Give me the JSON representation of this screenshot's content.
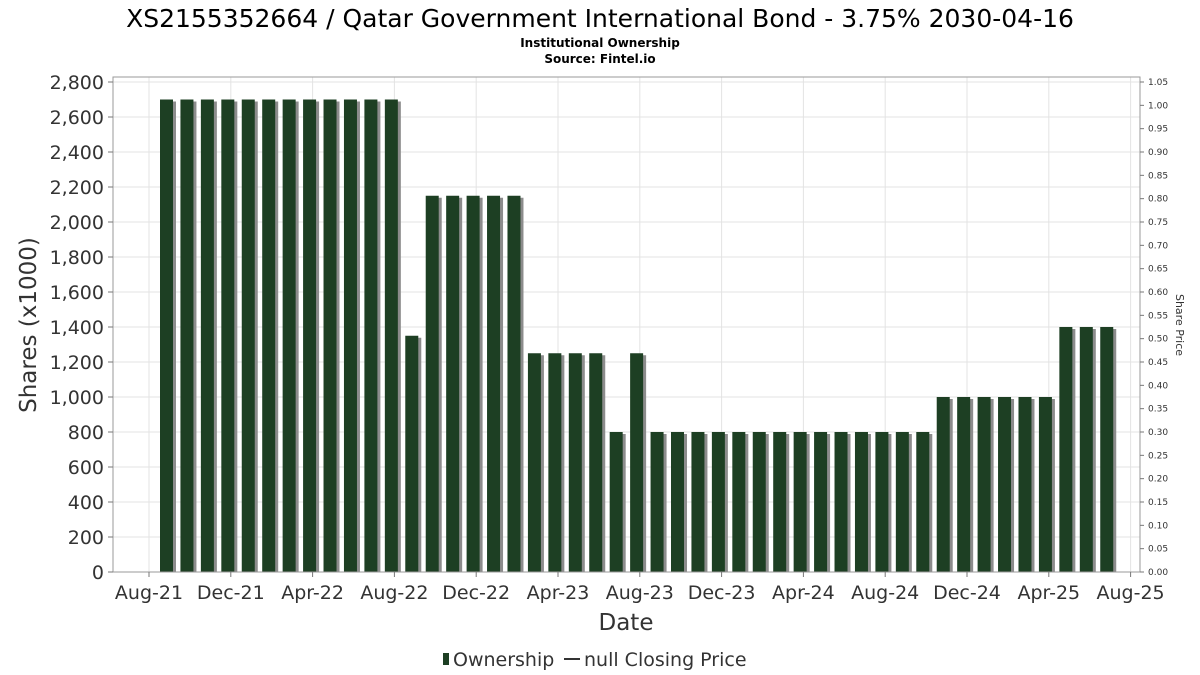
{
  "chart_data": {
    "type": "bar",
    "title": "XS2155352664 / Qatar Government International Bond - 3.75% 2030-04-16",
    "subtitle_lines": [
      "Institutional Ownership",
      "Source: Fintel.io"
    ],
    "xlabel": "Date",
    "ylabel": "Shares (x1000)",
    "y2label": "Share Price",
    "ylim": [
      0,
      2800
    ],
    "y2lim": [
      0,
      1.05
    ],
    "yticks": [
      "0",
      "200",
      "400",
      "600",
      "800",
      "1,000",
      "1,200",
      "1,400",
      "1,600",
      "1,800",
      "2,000",
      "2,200",
      "2,400",
      "2,600",
      "2,800"
    ],
    "y2ticks": [
      "0.00",
      "0.05",
      "0.10",
      "0.15",
      "0.20",
      "0.25",
      "0.30",
      "0.35",
      "0.40",
      "0.45",
      "0.50",
      "0.55",
      "0.60",
      "0.65",
      "0.70",
      "0.75",
      "0.80",
      "0.85",
      "0.90",
      "0.95",
      "1.00",
      "1.05"
    ],
    "xticks": [
      "Aug-21",
      "Dec-21",
      "Apr-22",
      "Aug-22",
      "Dec-22",
      "Apr-23",
      "Aug-23",
      "Dec-23",
      "Apr-24",
      "Aug-24",
      "Dec-24",
      "Apr-25",
      "Aug-25"
    ],
    "grid": true,
    "legend_position": "bottom-center",
    "series": [
      {
        "name": "Ownership",
        "color": "#1d3f23",
        "values": [
          2700,
          2700,
          2700,
          2700,
          2700,
          2700,
          2700,
          2700,
          2700,
          2700,
          2700,
          2700,
          1350,
          2150,
          2150,
          2150,
          2150,
          2150,
          1250,
          1250,
          1250,
          1250,
          800,
          1250,
          800,
          800,
          800,
          800,
          800,
          800,
          800,
          800,
          800,
          800,
          800,
          800,
          800,
          800,
          1000,
          1000,
          1000,
          1000,
          1000,
          1000,
          1400,
          1400,
          1400
        ]
      },
      {
        "name": "null Closing Price",
        "color": "#333333",
        "values": []
      }
    ]
  }
}
